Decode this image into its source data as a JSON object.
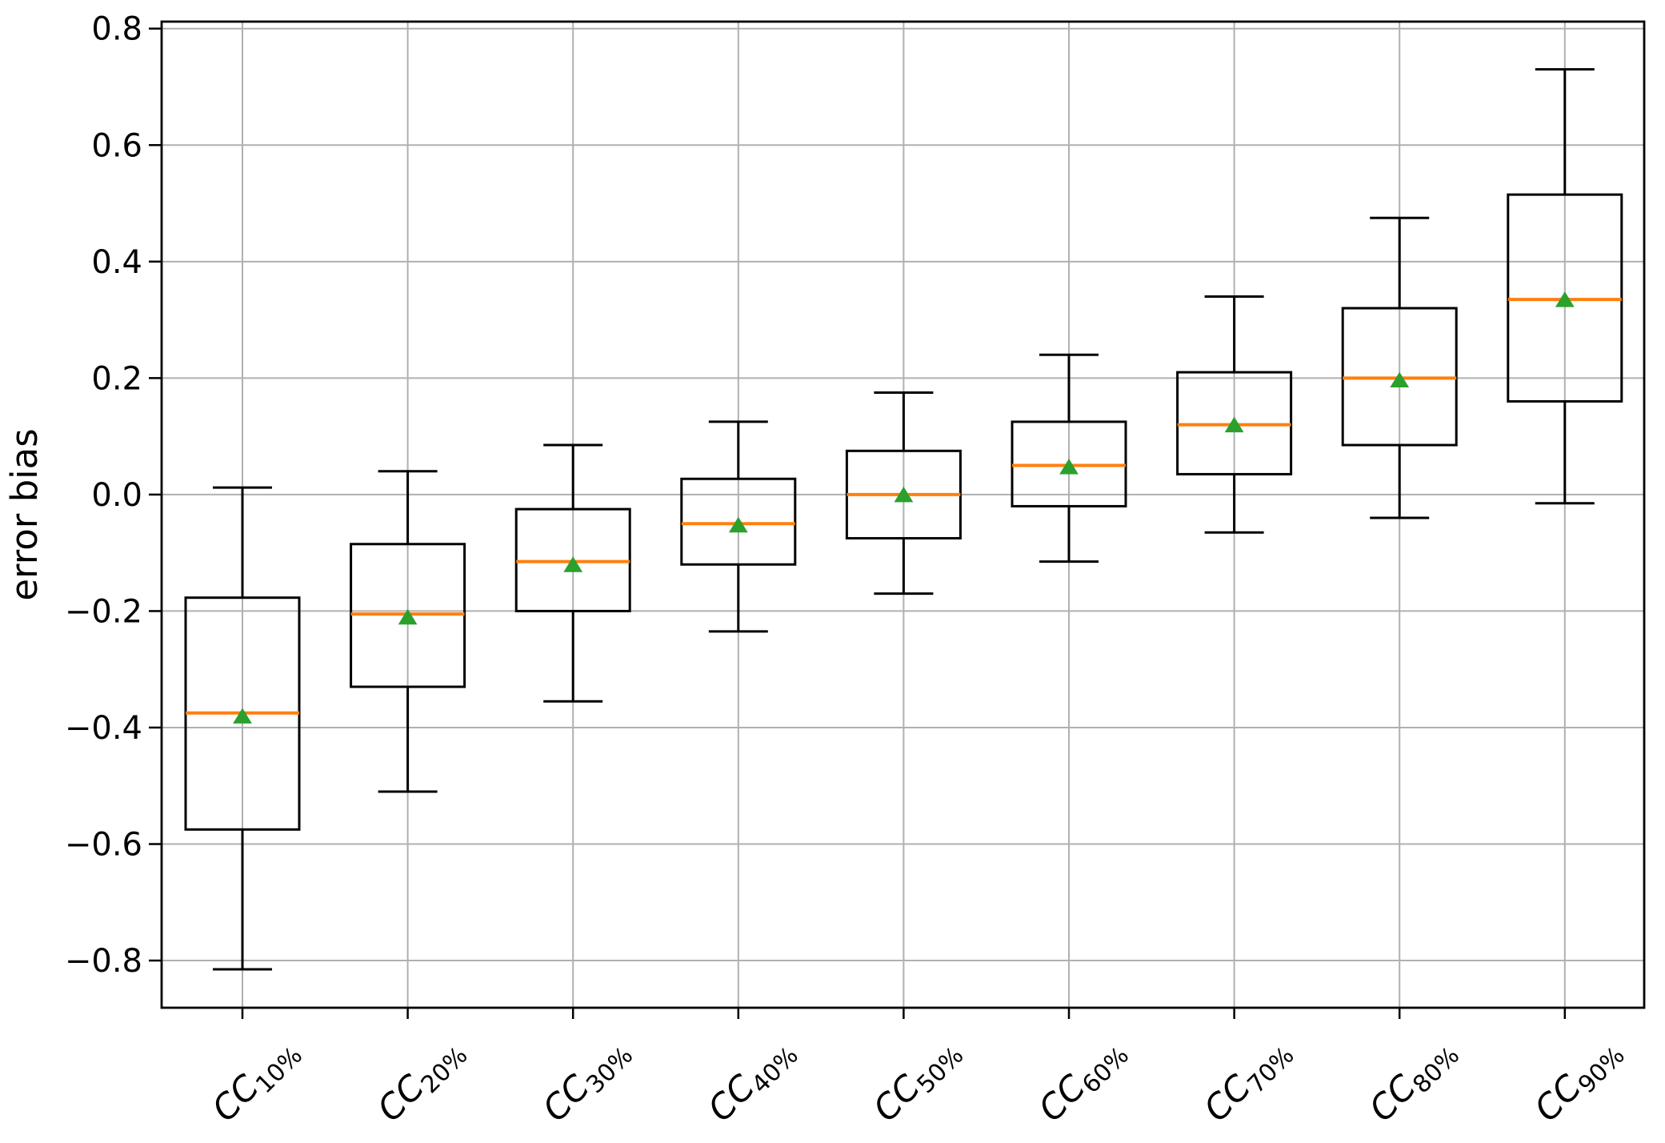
{
  "figure": {
    "background": "#ffffff"
  },
  "chart_data": {
    "type": "boxplot",
    "title": "",
    "xlabel": "",
    "ylabel": "error bias",
    "ylim": [
      -0.881,
      0.812
    ],
    "yticks": [
      0.8,
      0.6,
      0.4,
      0.2,
      0.0,
      -0.2,
      -0.4,
      -0.6,
      -0.8
    ],
    "ytick_labels": [
      "0.8",
      "0.6",
      "0.4",
      "0.2",
      "0.0",
      "−0.2",
      "−0.4",
      "−0.6",
      "−0.8"
    ],
    "grid": true,
    "legend": null,
    "categories": [
      {
        "main": "CC",
        "sub": "10%",
        "label": "CC10%"
      },
      {
        "main": "CC",
        "sub": "20%",
        "label": "CC20%"
      },
      {
        "main": "CC",
        "sub": "30%",
        "label": "CC30%"
      },
      {
        "main": "CC",
        "sub": "40%",
        "label": "CC40%"
      },
      {
        "main": "CC",
        "sub": "50%",
        "label": "CC50%"
      },
      {
        "main": "CC",
        "sub": "60%",
        "label": "CC60%"
      },
      {
        "main": "CC",
        "sub": "70%",
        "label": "CC70%"
      },
      {
        "main": "CC",
        "sub": "80%",
        "label": "CC80%"
      },
      {
        "main": "CC",
        "sub": "90%",
        "label": "CC90%"
      }
    ],
    "boxes": [
      {
        "label": "CC10%",
        "whislo": -0.815,
        "q1": -0.575,
        "med": -0.375,
        "mean": -0.38,
        "q3": -0.177,
        "whishi": 0.012
      },
      {
        "label": "CC20%",
        "whislo": -0.51,
        "q1": -0.33,
        "med": -0.205,
        "mean": -0.21,
        "q3": -0.085,
        "whishi": 0.04
      },
      {
        "label": "CC30%",
        "whislo": -0.355,
        "q1": -0.2,
        "med": -0.115,
        "mean": -0.12,
        "q3": -0.025,
        "whishi": 0.085
      },
      {
        "label": "CC40%",
        "whislo": -0.235,
        "q1": -0.12,
        "med": -0.05,
        "mean": -0.052,
        "q3": 0.027,
        "whishi": 0.125
      },
      {
        "label": "CC50%",
        "whislo": -0.17,
        "q1": -0.075,
        "med": 0.0,
        "mean": 0.0,
        "q3": 0.075,
        "whishi": 0.175
      },
      {
        "label": "CC60%",
        "whislo": -0.115,
        "q1": -0.02,
        "med": 0.05,
        "mean": 0.048,
        "q3": 0.125,
        "whishi": 0.24
      },
      {
        "label": "CC70%",
        "whislo": -0.065,
        "q1": 0.035,
        "med": 0.12,
        "mean": 0.12,
        "q3": 0.21,
        "whishi": 0.34
      },
      {
        "label": "CC80%",
        "whislo": -0.04,
        "q1": 0.085,
        "med": 0.2,
        "mean": 0.197,
        "q3": 0.32,
        "whishi": 0.475
      },
      {
        "label": "CC90%",
        "whislo": -0.015,
        "q1": 0.16,
        "med": 0.335,
        "mean": 0.335,
        "q3": 0.515,
        "whishi": 0.73
      }
    ],
    "colors": {
      "spine": "#000000",
      "box": "#000000",
      "whisker": "#000000",
      "median": "#ff7f0e",
      "mean_marker": "#2ca02c",
      "grid": "#b0b0b0",
      "background": "#ffffff"
    }
  }
}
